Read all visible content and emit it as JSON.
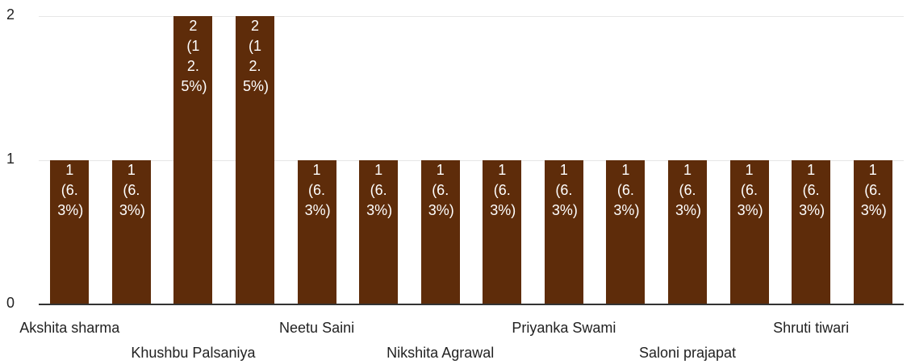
{
  "chart_data": {
    "type": "bar",
    "categories": [
      "Akshita sharma",
      null,
      "Khushbu Palsaniya",
      null,
      "Neetu Saini",
      null,
      "Nikshita Agrawal",
      null,
      "Priyanka Swami",
      null,
      "Saloni prajapat",
      null,
      "Shruti tiwari",
      null
    ],
    "values": [
      1,
      1,
      2,
      2,
      1,
      1,
      1,
      1,
      1,
      1,
      1,
      1,
      1,
      1
    ],
    "value_labels": [
      "1 (6.3%)",
      "1 (6.3%)",
      "2 (12.5%)",
      "2 (12.5%)",
      "1 (6.3%)",
      "1 (6.3%)",
      "1 (6.3%)",
      "1 (6.3%)",
      "1 (6.3%)",
      "1 (6.3%)",
      "1 (6.3%)",
      "1 (6.3%)",
      "1 (6.3%)",
      "1 (6.3%)"
    ],
    "color": "#5e2c0a",
    "ylim": [
      0,
      2
    ],
    "yticks": [
      0,
      1,
      2
    ],
    "grid": true
  }
}
